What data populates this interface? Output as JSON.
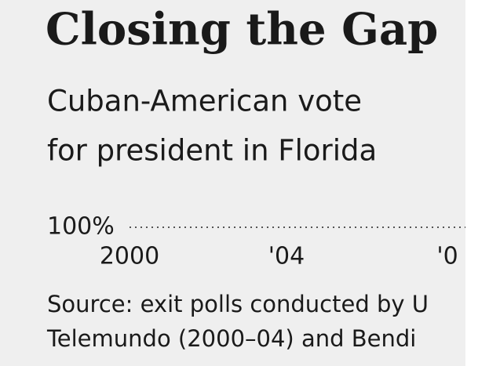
{
  "chart_data": {
    "type": "line",
    "title": "Closing the Gap",
    "subtitle": [
      "Cuban-American vote",
      "for president in Florida"
    ],
    "categories": [
      "2000",
      "'04",
      "'0"
    ],
    "yticks": [
      {
        "value": 100,
        "label": "100%"
      }
    ],
    "grid": true,
    "source": [
      "Source: exit polls conducted by U",
      "Telemundo (2000–04) and Bendi"
    ]
  }
}
